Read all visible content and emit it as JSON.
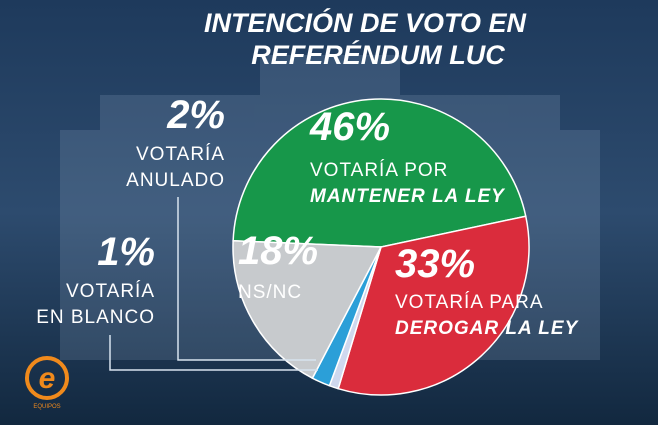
{
  "chart_data": {
    "type": "pie",
    "title": [
      "INTENCIÓN DE VOTO EN",
      "REFERÉNDUM LUC"
    ],
    "categories": [
      [
        "VOTARÍA POR",
        "MANTENER LA LEY"
      ],
      [
        "VOTARÍA PARA",
        "DEROGAR LA LEY"
      ],
      [
        "VOTARÍA",
        "EN BLANCO"
      ],
      [
        "VOTARÍA",
        "ANULADO"
      ],
      [
        "NS/NC"
      ]
    ],
    "values": [
      46,
      33,
      1,
      2,
      18
    ],
    "value_labels": [
      "46%",
      "33%",
      "1%",
      "2%",
      "18%"
    ],
    "colors": [
      "#17974a",
      "#da2c3c",
      "#cfd8ee",
      "#2b9fd8",
      "#c7cacd"
    ]
  },
  "logo": {
    "letter": "e",
    "text": "EQUIPOS"
  }
}
